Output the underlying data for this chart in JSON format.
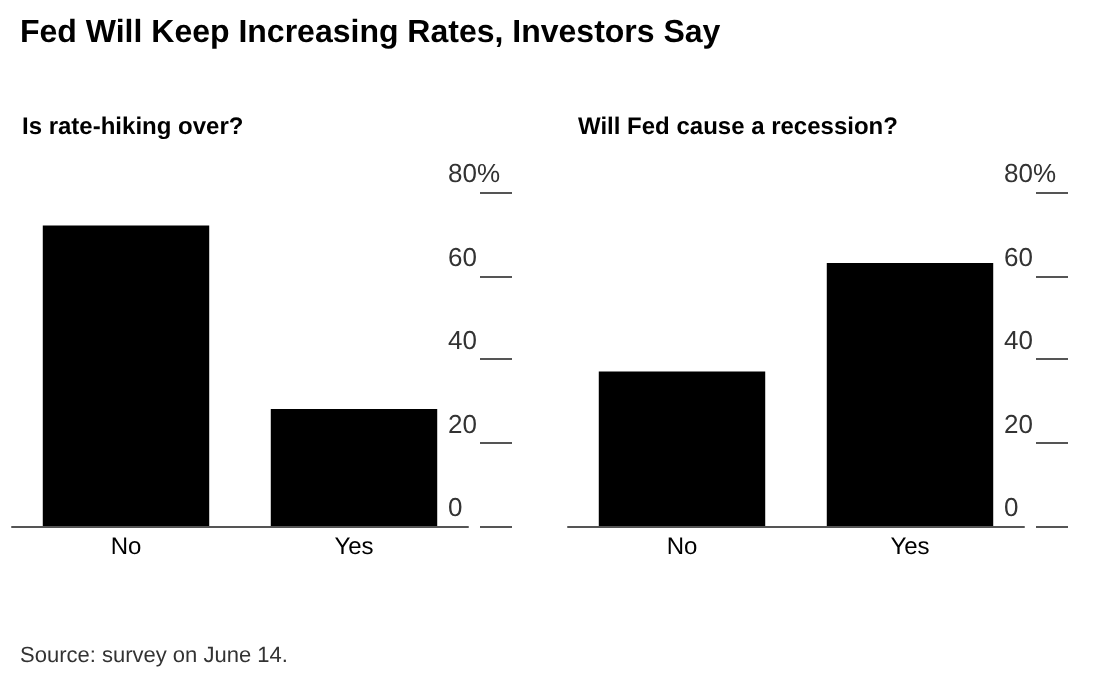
{
  "chart_data": [
    {
      "type": "bar",
      "title": "Fed Will Keep Increasing Rates, Investors Say",
      "subtitle": "Is rate-hiking over?",
      "categories": [
        "No",
        "Yes"
      ],
      "values": [
        72,
        28
      ],
      "color": "#000000",
      "ylim": [
        0,
        80
      ],
      "yticks": [
        0,
        20,
        40,
        60,
        {
          "value": 80,
          "label": "80%"
        }
      ]
    },
    {
      "type": "bar",
      "title": "Will Fed cause a recession?",
      "categories": [
        "No",
        "Yes"
      ],
      "values": [
        37,
        63
      ],
      "color": "#000000",
      "ylim": [
        0,
        80
      ],
      "yticks": [
        0,
        20,
        40,
        60,
        {
          "value": 80,
          "label": "80%"
        }
      ],
      "annotations": [
        "Source: survey on June 14."
      ]
    }
  ]
}
